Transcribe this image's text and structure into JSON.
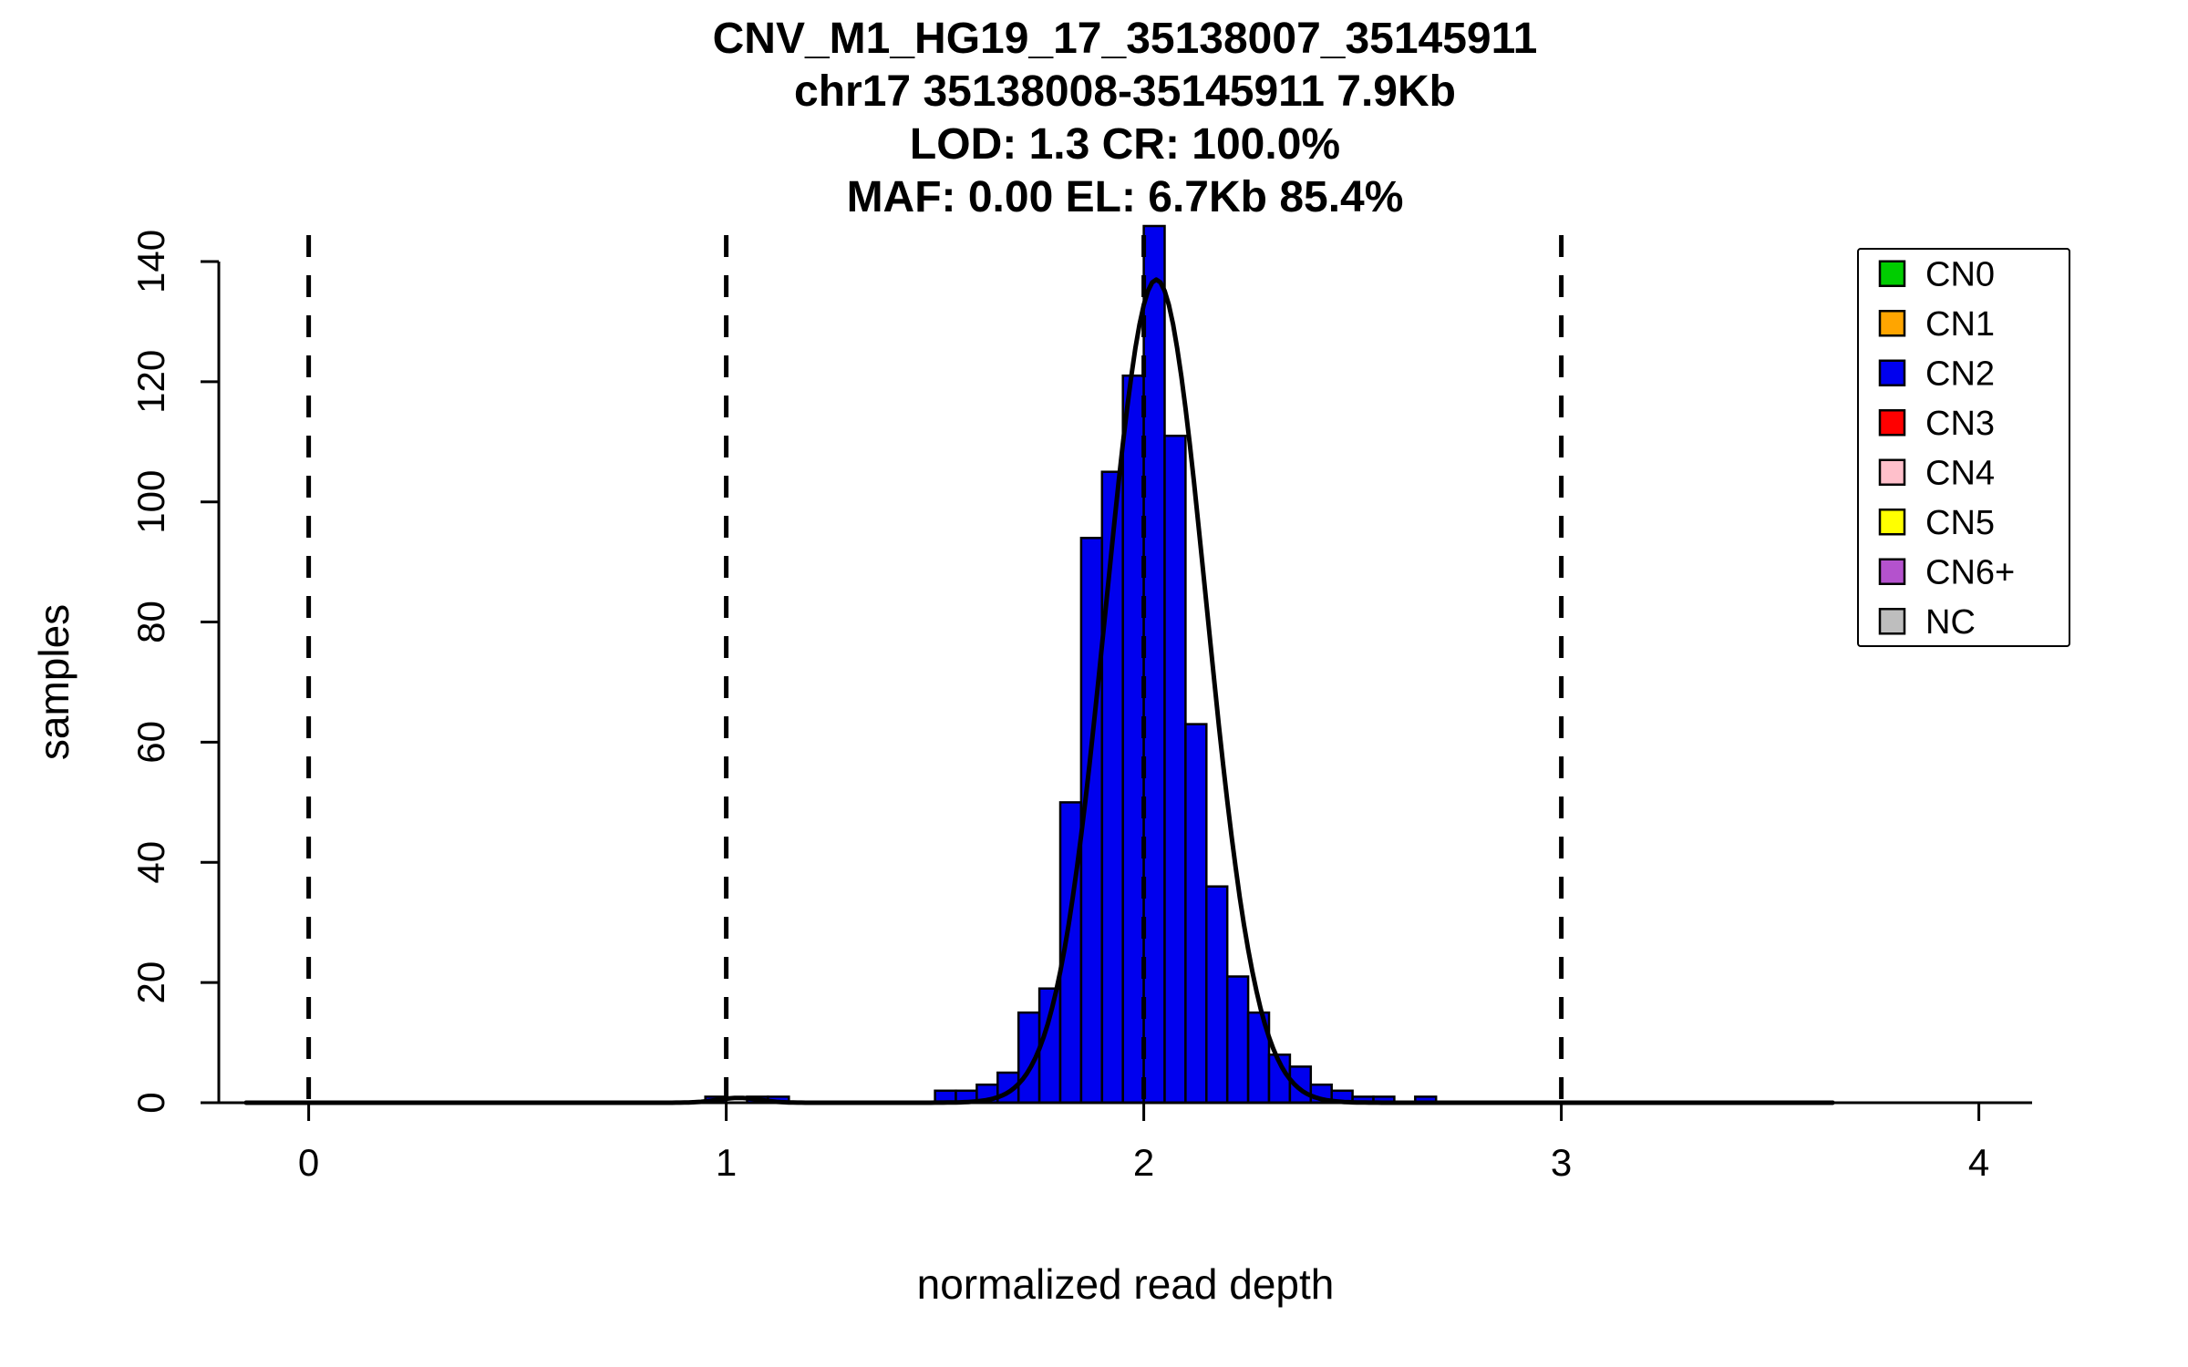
{
  "figure": {
    "background": "#FFFFFF"
  },
  "chart_data": {
    "type": "bar",
    "subtype": "histogram",
    "title_lines": [
      "CNV_M1_HG19_17_35138007_35145911",
      "chr17 35138008-35145911 7.9Kb",
      "LOD: 1.3 CR: 100.0%",
      "MAF: 0.00 EL: 6.7Kb 85.4%"
    ],
    "xlabel": "normalized read depth",
    "ylabel": "samples",
    "x_ticks": [
      0,
      1,
      2,
      3,
      4
    ],
    "y_ticks": [
      0,
      20,
      40,
      60,
      80,
      100,
      120,
      140
    ],
    "xlim": [
      -0.2,
      4.15
    ],
    "ylim": [
      0,
      140
    ],
    "grid": false,
    "bin_width": 0.05,
    "bar_fill": "#0000EE",
    "bar_stroke": "#000000",
    "bars": [
      {
        "x": 0.95,
        "count": 1
      },
      {
        "x": 1.05,
        "count": 1
      },
      {
        "x": 1.1,
        "count": 1
      },
      {
        "x": 1.5,
        "count": 2
      },
      {
        "x": 1.55,
        "count": 2
      },
      {
        "x": 1.6,
        "count": 3
      },
      {
        "x": 1.65,
        "count": 5
      },
      {
        "x": 1.7,
        "count": 15
      },
      {
        "x": 1.75,
        "count": 19
      },
      {
        "x": 1.8,
        "count": 50
      },
      {
        "x": 1.85,
        "count": 94
      },
      {
        "x": 1.9,
        "count": 105
      },
      {
        "x": 1.95,
        "count": 121
      },
      {
        "x": 2.0,
        "count": 146
      },
      {
        "x": 2.05,
        "count": 111
      },
      {
        "x": 2.1,
        "count": 63
      },
      {
        "x": 2.15,
        "count": 36
      },
      {
        "x": 2.2,
        "count": 21
      },
      {
        "x": 2.25,
        "count": 15
      },
      {
        "x": 2.3,
        "count": 8
      },
      {
        "x": 2.35,
        "count": 6
      },
      {
        "x": 2.4,
        "count": 3
      },
      {
        "x": 2.45,
        "count": 2
      },
      {
        "x": 2.5,
        "count": 1
      },
      {
        "x": 2.55,
        "count": 1
      },
      {
        "x": 2.65,
        "count": 1
      }
    ],
    "dashed_guides_x": [
      0,
      1,
      2,
      3
    ],
    "fit_curve": {
      "color": "#000000",
      "range": [
        -0.15,
        3.65
      ],
      "components": [
        {
          "mean": 2.03,
          "sd": 0.12,
          "peak": 137
        },
        {
          "mean": 1.03,
          "sd": 0.05,
          "peak": 0.8
        }
      ]
    },
    "legend": {
      "position": "top-right",
      "items": [
        {
          "label": "CN0",
          "color": "#00CD00"
        },
        {
          "label": "CN1",
          "color": "#FFA500"
        },
        {
          "label": "CN2",
          "color": "#0000EE"
        },
        {
          "label": "CN3",
          "color": "#FF0000"
        },
        {
          "label": "CN4",
          "color": "#FFC0CB"
        },
        {
          "label": "CN5",
          "color": "#FFFF00"
        },
        {
          "label": "CN6+",
          "color": "#B452CD"
        },
        {
          "label": "NC",
          "color": "#BEBEBE"
        }
      ]
    }
  }
}
